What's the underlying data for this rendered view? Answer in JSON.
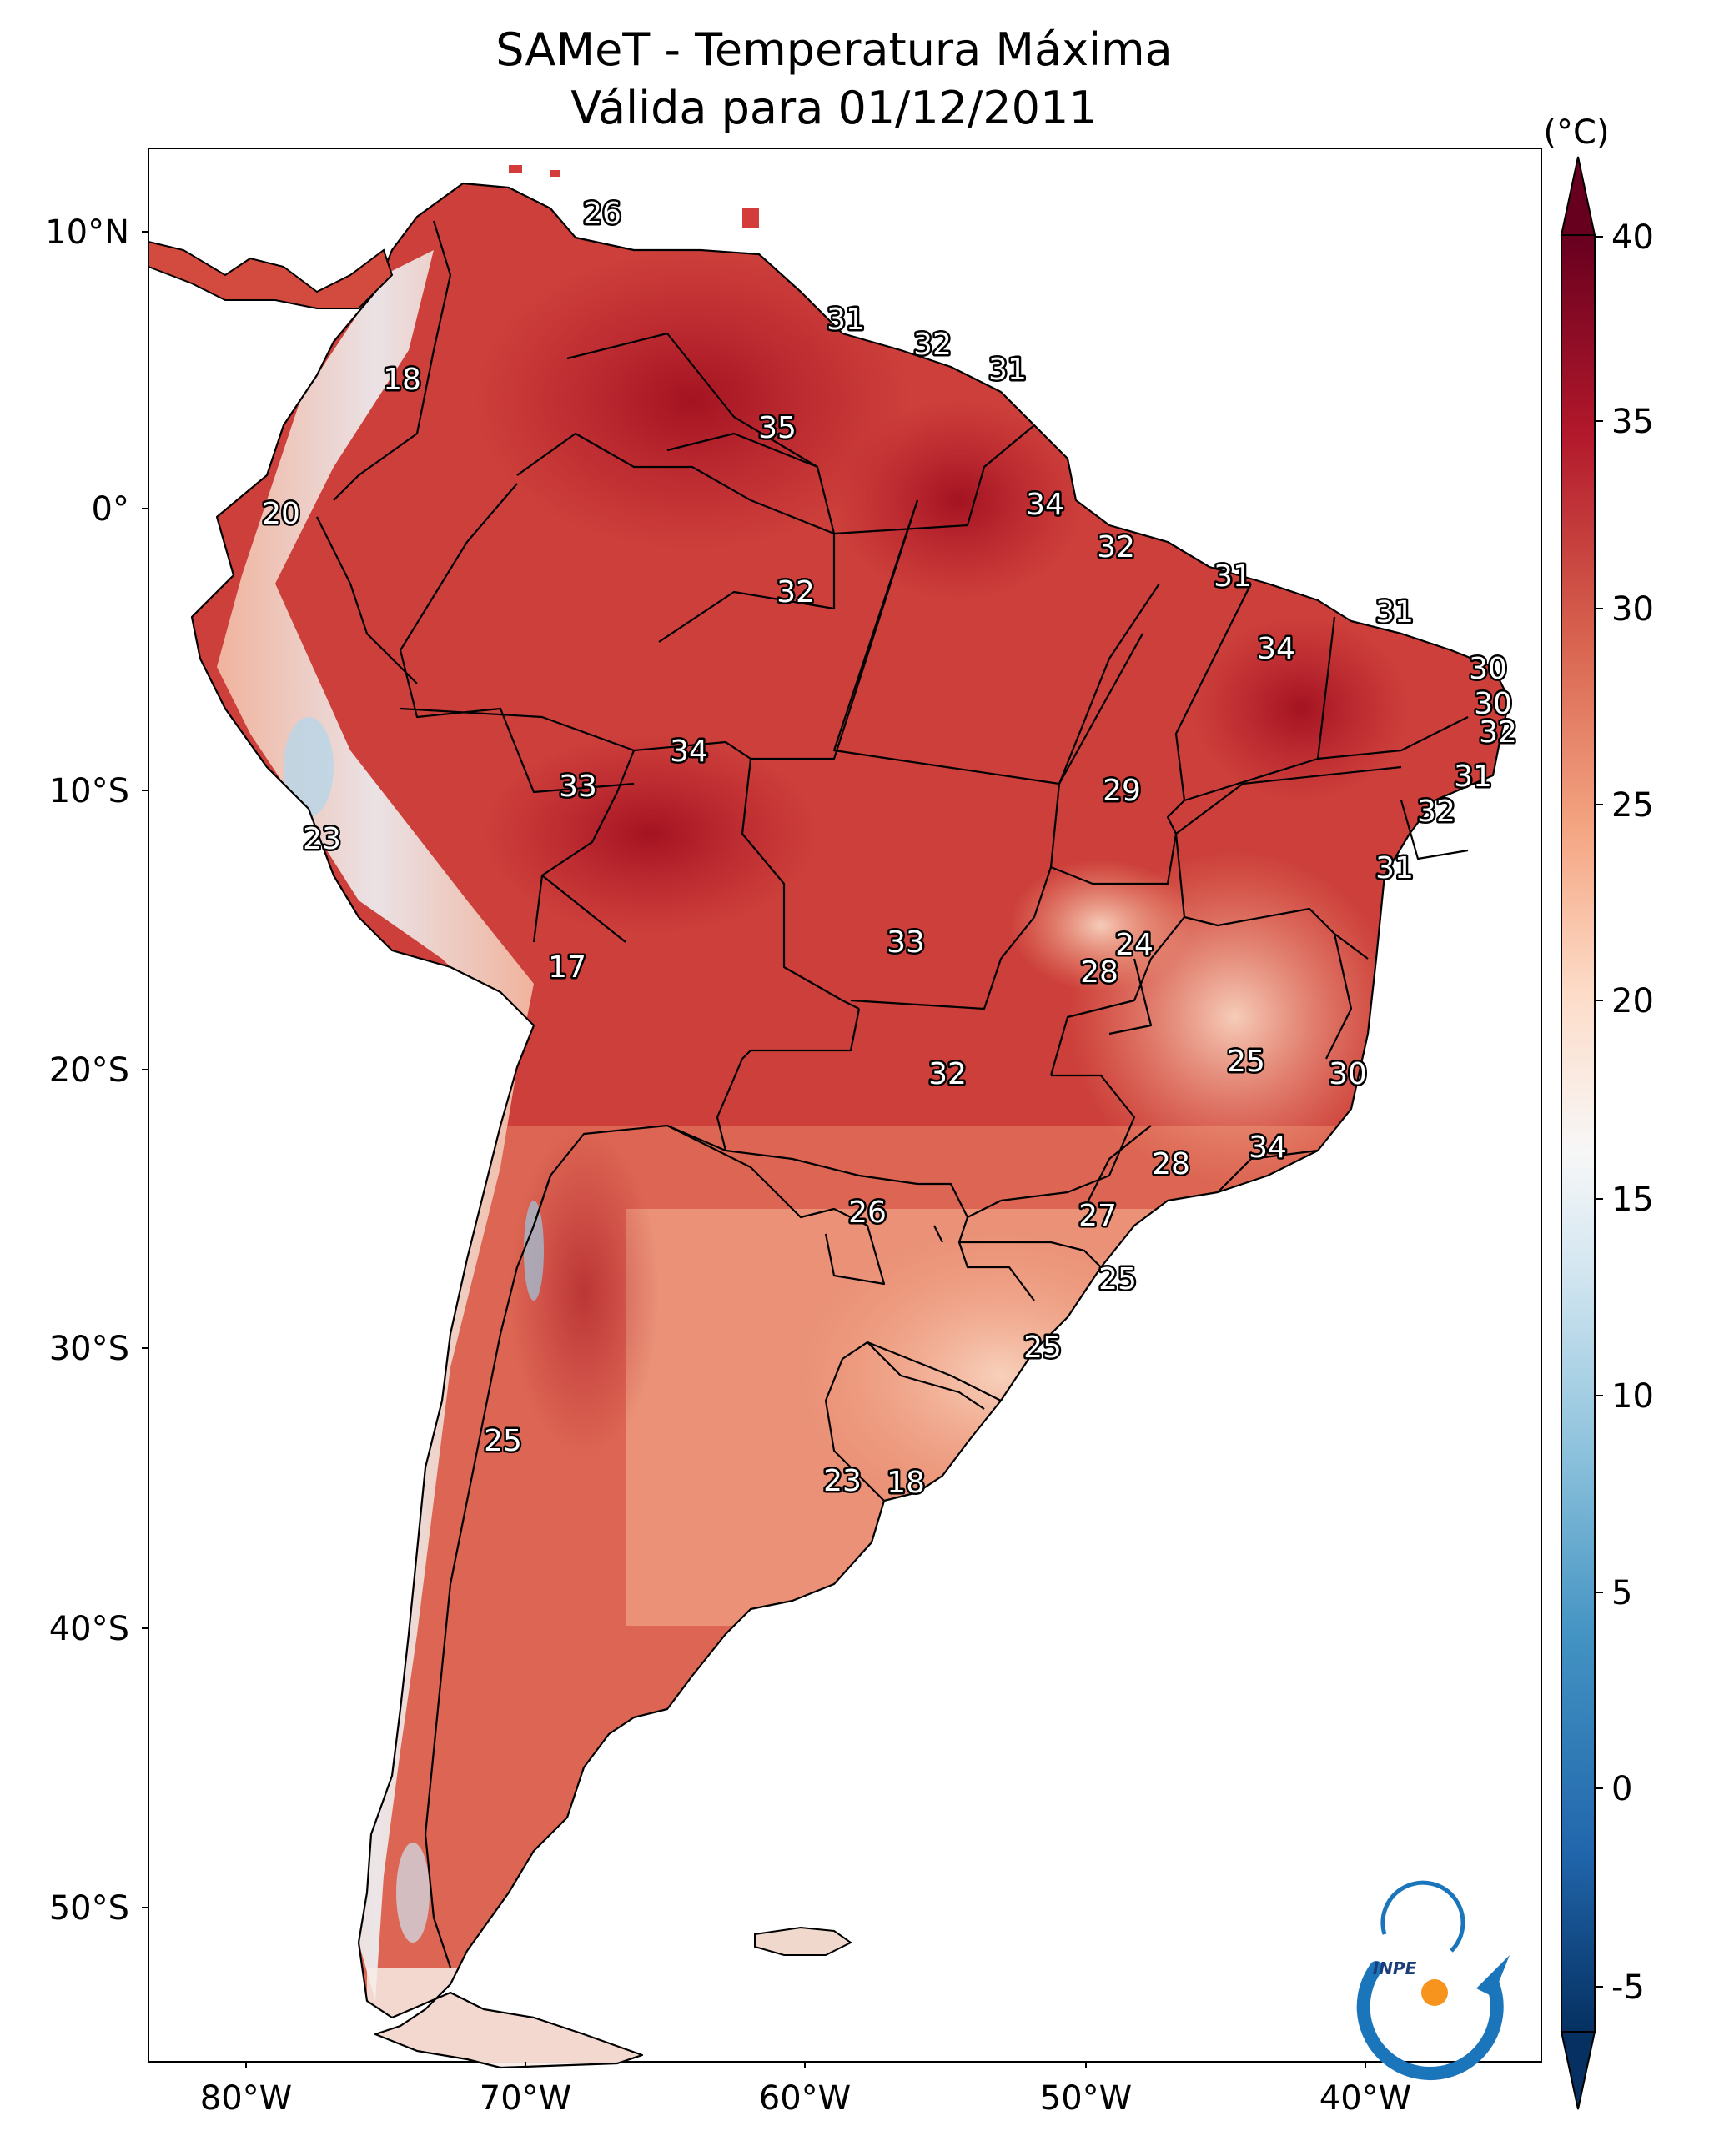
{
  "map": {
    "title_line1": "SAMeT - Temperatura Máxima",
    "title_line2": "Válida para 01/12/2011",
    "lat_ticks": [
      "10°N",
      "0°",
      "10°S",
      "20°S",
      "30°S",
      "40°S",
      "50°S"
    ],
    "lon_ticks": [
      "80°W",
      "70°W",
      "60°W",
      "50°W",
      "40°W"
    ],
    "colorbar": {
      "unit": "(°C)",
      "ticks": [
        "40",
        "35",
        "30",
        "25",
        "20",
        "15",
        "10",
        "5",
        "0",
        "-5"
      ],
      "colors": {
        "c40": "#67001f",
        "c35": "#b2182b",
        "c30": "#d6604d",
        "c25": "#f4a582",
        "c20": "#fddbc7",
        "c17": "#f7f7f7",
        "c15": "#d1e5f0",
        "c10": "#92c5de",
        "c5": "#4393c3",
        "c0": "#2166ac",
        "cm5": "#053061"
      }
    },
    "city_values": [
      "26",
      "31",
      "32",
      "31",
      "18",
      "35",
      "20",
      "34",
      "32",
      "32",
      "31",
      "31",
      "34",
      "30",
      "30",
      "32",
      "34",
      "31",
      "33",
      "29",
      "32",
      "23",
      "31",
      "24",
      "33",
      "17",
      "28",
      "25",
      "30",
      "32",
      "34",
      "28",
      "26",
      "27",
      "25",
      "25",
      "25",
      "23",
      "18"
    ],
    "logo_text": "INPE",
    "brand_colors": {
      "logo_blue": "#1b75bb",
      "logo_orange": "#f7941d"
    }
  }
}
